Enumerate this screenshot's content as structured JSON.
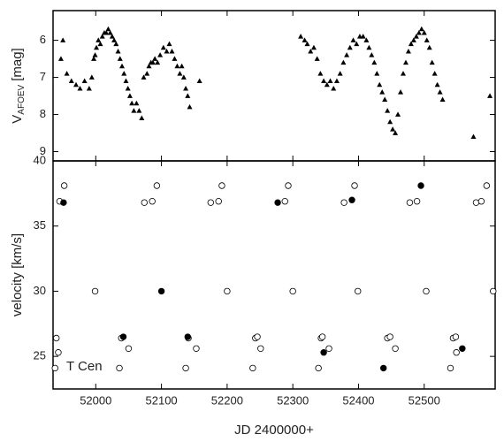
{
  "chart_data": [
    {
      "type": "scatter",
      "y_label": {
        "main": "V",
        "subscript": "AFOEV",
        "unit": "[mag]"
      },
      "xlim": [
        51935,
        52608
      ],
      "ylim": [
        9.25,
        5.2
      ],
      "yticks": [
        6,
        7,
        8,
        9
      ],
      "series": [
        {
          "marker": "triangle",
          "color": "#000000",
          "x": [
            51947,
            51950,
            51956,
            51963,
            51970,
            51976,
            51983,
            51990,
            51994,
            51997,
            51999,
            52001,
            52004,
            52007,
            52010,
            52013,
            52016,
            52019,
            52022,
            52025,
            52028,
            52031,
            52034,
            52037,
            52040,
            52043,
            52046,
            52049,
            52052,
            52055,
            52058,
            52062,
            52066,
            52070,
            52073,
            52078,
            52081,
            52084,
            52087,
            52090,
            52094,
            52098,
            52103,
            52108,
            52112,
            52116,
            52120,
            52124,
            52128,
            52131,
            52134,
            52137,
            52140,
            52143,
            52158,
            52312,
            52318,
            52322,
            52327,
            52332,
            52337,
            52342,
            52347,
            52352,
            52357,
            52362,
            52367,
            52372,
            52377,
            52382,
            52387,
            52392,
            52397,
            52402,
            52407,
            52412,
            52416,
            52420,
            52424,
            52428,
            52432,
            52436,
            52440,
            52444,
            52448,
            52452,
            52456,
            52460,
            52464,
            52468,
            52472,
            52476,
            52480,
            52484,
            52488,
            52492,
            52496,
            52500,
            52504,
            52508,
            52512,
            52516,
            52520,
            52524,
            52528,
            52575,
            52600
          ],
          "values": [
            6.5,
            6.0,
            6.9,
            7.1,
            7.2,
            7.3,
            7.1,
            7.3,
            7.0,
            6.5,
            6.4,
            6.2,
            6.0,
            6.1,
            5.9,
            5.8,
            5.8,
            5.7,
            5.8,
            5.9,
            6.0,
            6.1,
            6.3,
            6.5,
            6.7,
            6.9,
            7.1,
            7.3,
            7.5,
            7.7,
            7.9,
            7.7,
            7.9,
            8.1,
            7.0,
            6.9,
            6.7,
            6.6,
            6.6,
            6.5,
            6.6,
            6.4,
            6.2,
            6.3,
            6.1,
            6.3,
            6.5,
            6.7,
            6.9,
            6.7,
            7.0,
            7.3,
            7.5,
            7.8,
            7.1,
            5.9,
            6.0,
            6.1,
            6.3,
            6.2,
            6.5,
            6.9,
            7.1,
            7.2,
            7.1,
            7.3,
            7.1,
            6.9,
            6.6,
            6.4,
            6.2,
            6.0,
            6.1,
            5.9,
            5.9,
            6.0,
            6.2,
            6.4,
            6.6,
            6.9,
            7.2,
            7.4,
            7.6,
            7.9,
            8.2,
            8.4,
            8.5,
            8.0,
            7.4,
            6.9,
            6.6,
            6.3,
            6.1,
            6.0,
            5.9,
            5.8,
            5.7,
            5.8,
            6.0,
            6.2,
            6.6,
            6.9,
            7.2,
            7.4,
            7.6,
            8.6,
            7.5
          ]
        }
      ]
    },
    {
      "type": "scatter",
      "y_label": "velocity [km/s]",
      "x_label": "JD 2400000+",
      "annotation": "T Cen",
      "xlim": [
        51935,
        52608
      ],
      "xticks": [
        52000,
        52100,
        52200,
        52300,
        52400,
        52500
      ],
      "ylim": [
        22.5,
        40
      ],
      "yticks": [
        25,
        30,
        35,
        40
      ],
      "series": [
        {
          "marker": "circle-open",
          "color": "#000000",
          "x": [
            51952,
            51945,
            51999,
            51940,
            51943,
            51938,
            52093,
            52074,
            52086,
            52039,
            52050,
            52036,
            52192,
            52175,
            52187,
            52200,
            52141,
            52153,
            52137,
            52293,
            52288,
            52300,
            52243,
            52246,
            52251,
            52239,
            52394,
            52378,
            52399,
            52343,
            52345,
            52355,
            52339,
            52478,
            52489,
            52503,
            52444,
            52448,
            52456,
            52595,
            52579,
            52587,
            52605,
            52544,
            52548,
            52549,
            52540
          ],
          "values": [
            38.1,
            36.9,
            30,
            26.4,
            25.3,
            24.1,
            38.1,
            36.8,
            36.9,
            26.4,
            25.6,
            24.1,
            38.1,
            36.8,
            36.9,
            30,
            26.4,
            25.6,
            24.1,
            38.1,
            36.9,
            30,
            26.4,
            26.5,
            25.6,
            24.1,
            38.1,
            36.8,
            30,
            26.4,
            26.5,
            25.6,
            24.1,
            36.8,
            36.9,
            30,
            26.4,
            26.5,
            25.6,
            38.1,
            36.8,
            36.9,
            30,
            26.4,
            26.5,
            25.3,
            24.1
          ]
        },
        {
          "marker": "circle-filled",
          "color": "#000000",
          "x": [
            51951,
            52100,
            52042,
            52140,
            52277,
            52390,
            52347,
            52495,
            52438,
            52558
          ],
          "values": [
            36.8,
            30,
            26.5,
            26.5,
            36.8,
            37.0,
            25.3,
            38.1,
            24.1,
            25.6
          ]
        }
      ]
    }
  ]
}
